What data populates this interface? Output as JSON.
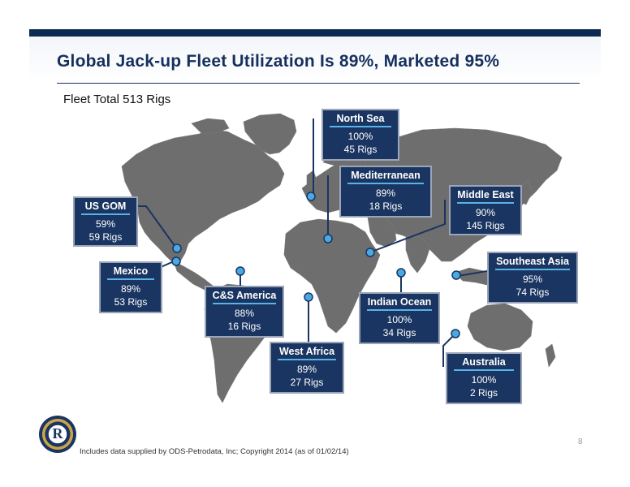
{
  "title": "Global Jack-up Fleet Utilization Is 89%, Marketed 95%",
  "subtitle": "Fleet Total 513 Rigs",
  "regions": [
    {
      "name": "North Sea",
      "utilization": "100%",
      "rigs": "45 Rigs"
    },
    {
      "name": "Mediterranean",
      "utilization": "89%",
      "rigs": "18 Rigs"
    },
    {
      "name": "Middle East",
      "utilization": "90%",
      "rigs": "145 Rigs"
    },
    {
      "name": "US GOM",
      "utilization": "59%",
      "rigs": "59 Rigs"
    },
    {
      "name": "Mexico",
      "utilization": "89%",
      "rigs": "53 Rigs"
    },
    {
      "name": "C&S America",
      "utilization": "88%",
      "rigs": "16 Rigs"
    },
    {
      "name": "Southeast Asia",
      "utilization": "95%",
      "rigs": "74 Rigs"
    },
    {
      "name": "Indian Ocean",
      "utilization": "100%",
      "rigs": "34 Rigs"
    },
    {
      "name": "West Africa",
      "utilization": "89%",
      "rigs": "27 Rigs"
    },
    {
      "name": "Australia",
      "utilization": "100%",
      "rigs": "2 Rigs"
    }
  ],
  "footer": "Includes data supplied by ODS-Petrodata, Inc; Copyright 2014 (as of 01/02/14)",
  "page_number": "8",
  "colors": {
    "header_bar": "#0d2a52",
    "box_fill": "#1a3561",
    "box_underline": "#58b4e8",
    "land": "#6e6e6e",
    "marker": "#49a9e3"
  }
}
